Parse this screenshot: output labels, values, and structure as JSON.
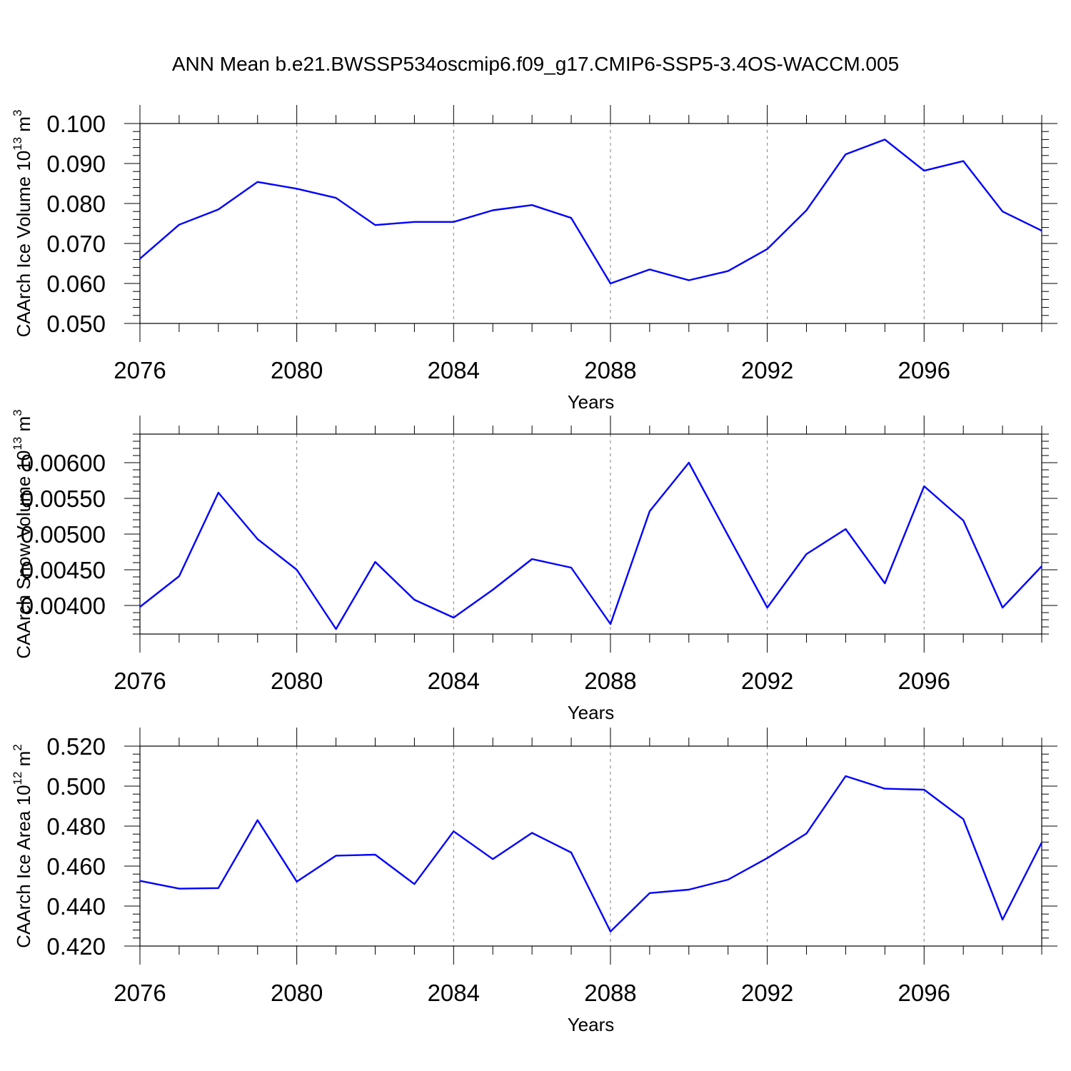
{
  "title": "ANN Mean b.e21.BWSSP534oscmip6.f09_g17.CMIP6-SSP5-3.4OS-WACCM.005",
  "colors": {
    "line": "#0000ff",
    "axis": "#000000",
    "grid": "#808080"
  },
  "chart_data": [
    {
      "type": "line",
      "ylabel_main": "CAArch Ice Volume 10",
      "ylabel_exp": "13",
      "ylabel_unit": " m",
      "ylabel_unit_exp": "3",
      "xlabel": "Years",
      "x_tick_labels": [
        "2076",
        "2080",
        "2084",
        "2088",
        "2092",
        "2096"
      ],
      "y_tick_labels": [
        "0.050",
        "0.060",
        "0.070",
        "0.080",
        "0.090",
        "0.100"
      ],
      "xlim": [
        2076,
        2099
      ],
      "ylim": [
        0.05,
        0.1
      ],
      "y_ticks": [
        0.05,
        0.06,
        0.07,
        0.08,
        0.09,
        0.1
      ],
      "y_minor_step": 0.002,
      "x": [
        2076,
        2077,
        2078,
        2079,
        2080,
        2081,
        2082,
        2083,
        2084,
        2085,
        2086,
        2087,
        2088,
        2089,
        2090,
        2091,
        2092,
        2093,
        2094,
        2095,
        2096,
        2097,
        2098,
        2099
      ],
      "values": [
        0.0662,
        0.0747,
        0.0785,
        0.0854,
        0.0837,
        0.0814,
        0.0746,
        0.0754,
        0.0754,
        0.0783,
        0.0796,
        0.0764,
        0.06,
        0.0635,
        0.0608,
        0.0631,
        0.0686,
        0.0783,
        0.0923,
        0.096,
        0.0882,
        0.0906,
        0.078,
        0.0732
      ]
    },
    {
      "type": "line",
      "ylabel_main": "CAArch Snow Volume 10",
      "ylabel_exp": "13",
      "ylabel_unit": " m",
      "ylabel_unit_exp": "3",
      "xlabel": "Years",
      "x_tick_labels": [
        "2076",
        "2080",
        "2084",
        "2088",
        "2092",
        "2096"
      ],
      "y_tick_labels": [
        "0.00400",
        "0.00450",
        "0.00500",
        "0.00550",
        "0.00600"
      ],
      "xlim": [
        2076,
        2099
      ],
      "ylim": [
        0.0036,
        0.0064
      ],
      "y_ticks": [
        0.004,
        0.0045,
        0.005,
        0.0055,
        0.006
      ],
      "y_minor_step": 0.0001,
      "x": [
        2076,
        2077,
        2078,
        2079,
        2080,
        2081,
        2082,
        2083,
        2084,
        2085,
        2086,
        2087,
        2088,
        2089,
        2090,
        2091,
        2092,
        2093,
        2094,
        2095,
        2096,
        2097,
        2098,
        2099
      ],
      "values": [
        0.00398,
        0.00441,
        0.00558,
        0.00493,
        0.0045,
        0.00367,
        0.00461,
        0.00408,
        0.00383,
        0.00422,
        0.00465,
        0.00453,
        0.00374,
        0.00532,
        0.006,
        0.00498,
        0.00397,
        0.00472,
        0.00507,
        0.00431,
        0.00567,
        0.00519,
        0.00397,
        0.00455
      ]
    },
    {
      "type": "line",
      "ylabel_main": "CAArch Ice Area 10",
      "ylabel_exp": "12",
      "ylabel_unit": " m",
      "ylabel_unit_exp": "2",
      "xlabel": "Years",
      "x_tick_labels": [
        "2076",
        "2080",
        "2084",
        "2088",
        "2092",
        "2096"
      ],
      "y_tick_labels": [
        "0.420",
        "0.440",
        "0.460",
        "0.480",
        "0.500",
        "0.520"
      ],
      "xlim": [
        2076,
        2099
      ],
      "ylim": [
        0.42,
        0.52
      ],
      "y_ticks": [
        0.42,
        0.44,
        0.46,
        0.48,
        0.5,
        0.52
      ],
      "y_minor_step": 0.004,
      "x": [
        2076,
        2077,
        2078,
        2079,
        2080,
        2081,
        2082,
        2083,
        2084,
        2085,
        2086,
        2087,
        2088,
        2089,
        2090,
        2091,
        2092,
        2093,
        2094,
        2095,
        2096,
        2097,
        2098,
        2099
      ],
      "values": [
        0.4526,
        0.4487,
        0.449,
        0.483,
        0.4522,
        0.4652,
        0.4657,
        0.451,
        0.4774,
        0.4635,
        0.4766,
        0.4668,
        0.4273,
        0.4465,
        0.4482,
        0.4532,
        0.464,
        0.4763,
        0.505,
        0.4987,
        0.4982,
        0.4835,
        0.4332,
        0.4718
      ]
    }
  ]
}
